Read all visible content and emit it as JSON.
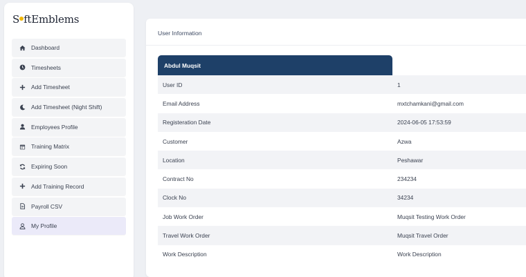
{
  "logo": {
    "part1": "S",
    "part2": "ftEmblems"
  },
  "sidebar": {
    "items": [
      {
        "label": "Dashboard",
        "icon": "home-icon"
      },
      {
        "label": "Timesheets",
        "icon": "clock-icon"
      },
      {
        "label": "Add Timesheet",
        "icon": "plus-icon"
      },
      {
        "label": "Add Timesheet (Night Shift)",
        "icon": "moon-icon"
      },
      {
        "label": "Employees Profile",
        "icon": "user-icon"
      },
      {
        "label": "Training Matrix",
        "icon": "calendar-icon"
      },
      {
        "label": "Expiring Soon",
        "icon": "sync-icon"
      },
      {
        "label": "Add Training Record",
        "icon": "plus-icon"
      },
      {
        "label": "Payroll CSV",
        "icon": "file-icon"
      },
      {
        "label": "My Profile",
        "icon": "user-outline-icon"
      }
    ],
    "active_index": 9
  },
  "card": {
    "title": "User Information",
    "user_name": "Abdul Muqsit",
    "rows": [
      {
        "label": "User ID",
        "value": "1"
      },
      {
        "label": "Email Address",
        "value": "mxtchamkani@gmail.com"
      },
      {
        "label": "Registeration Date",
        "value": "2024-06-05 17:53:59"
      },
      {
        "label": "Customer",
        "value": "Azwa"
      },
      {
        "label": "Location",
        "value": "Peshawar"
      },
      {
        "label": "Contract No",
        "value": "234234"
      },
      {
        "label": "Clock No",
        "value": "34234"
      },
      {
        "label": "Job Work Order",
        "value": "Muqsit Testing Work Order"
      },
      {
        "label": "Travel Work Order",
        "value": "Muqsit Travel Order"
      },
      {
        "label": "Work Description",
        "value": "Work Description"
      }
    ]
  },
  "colors": {
    "header_bg": "#1e4068",
    "logo_accent": "#f2b705",
    "active_item_bg": "#ebeaf9"
  }
}
